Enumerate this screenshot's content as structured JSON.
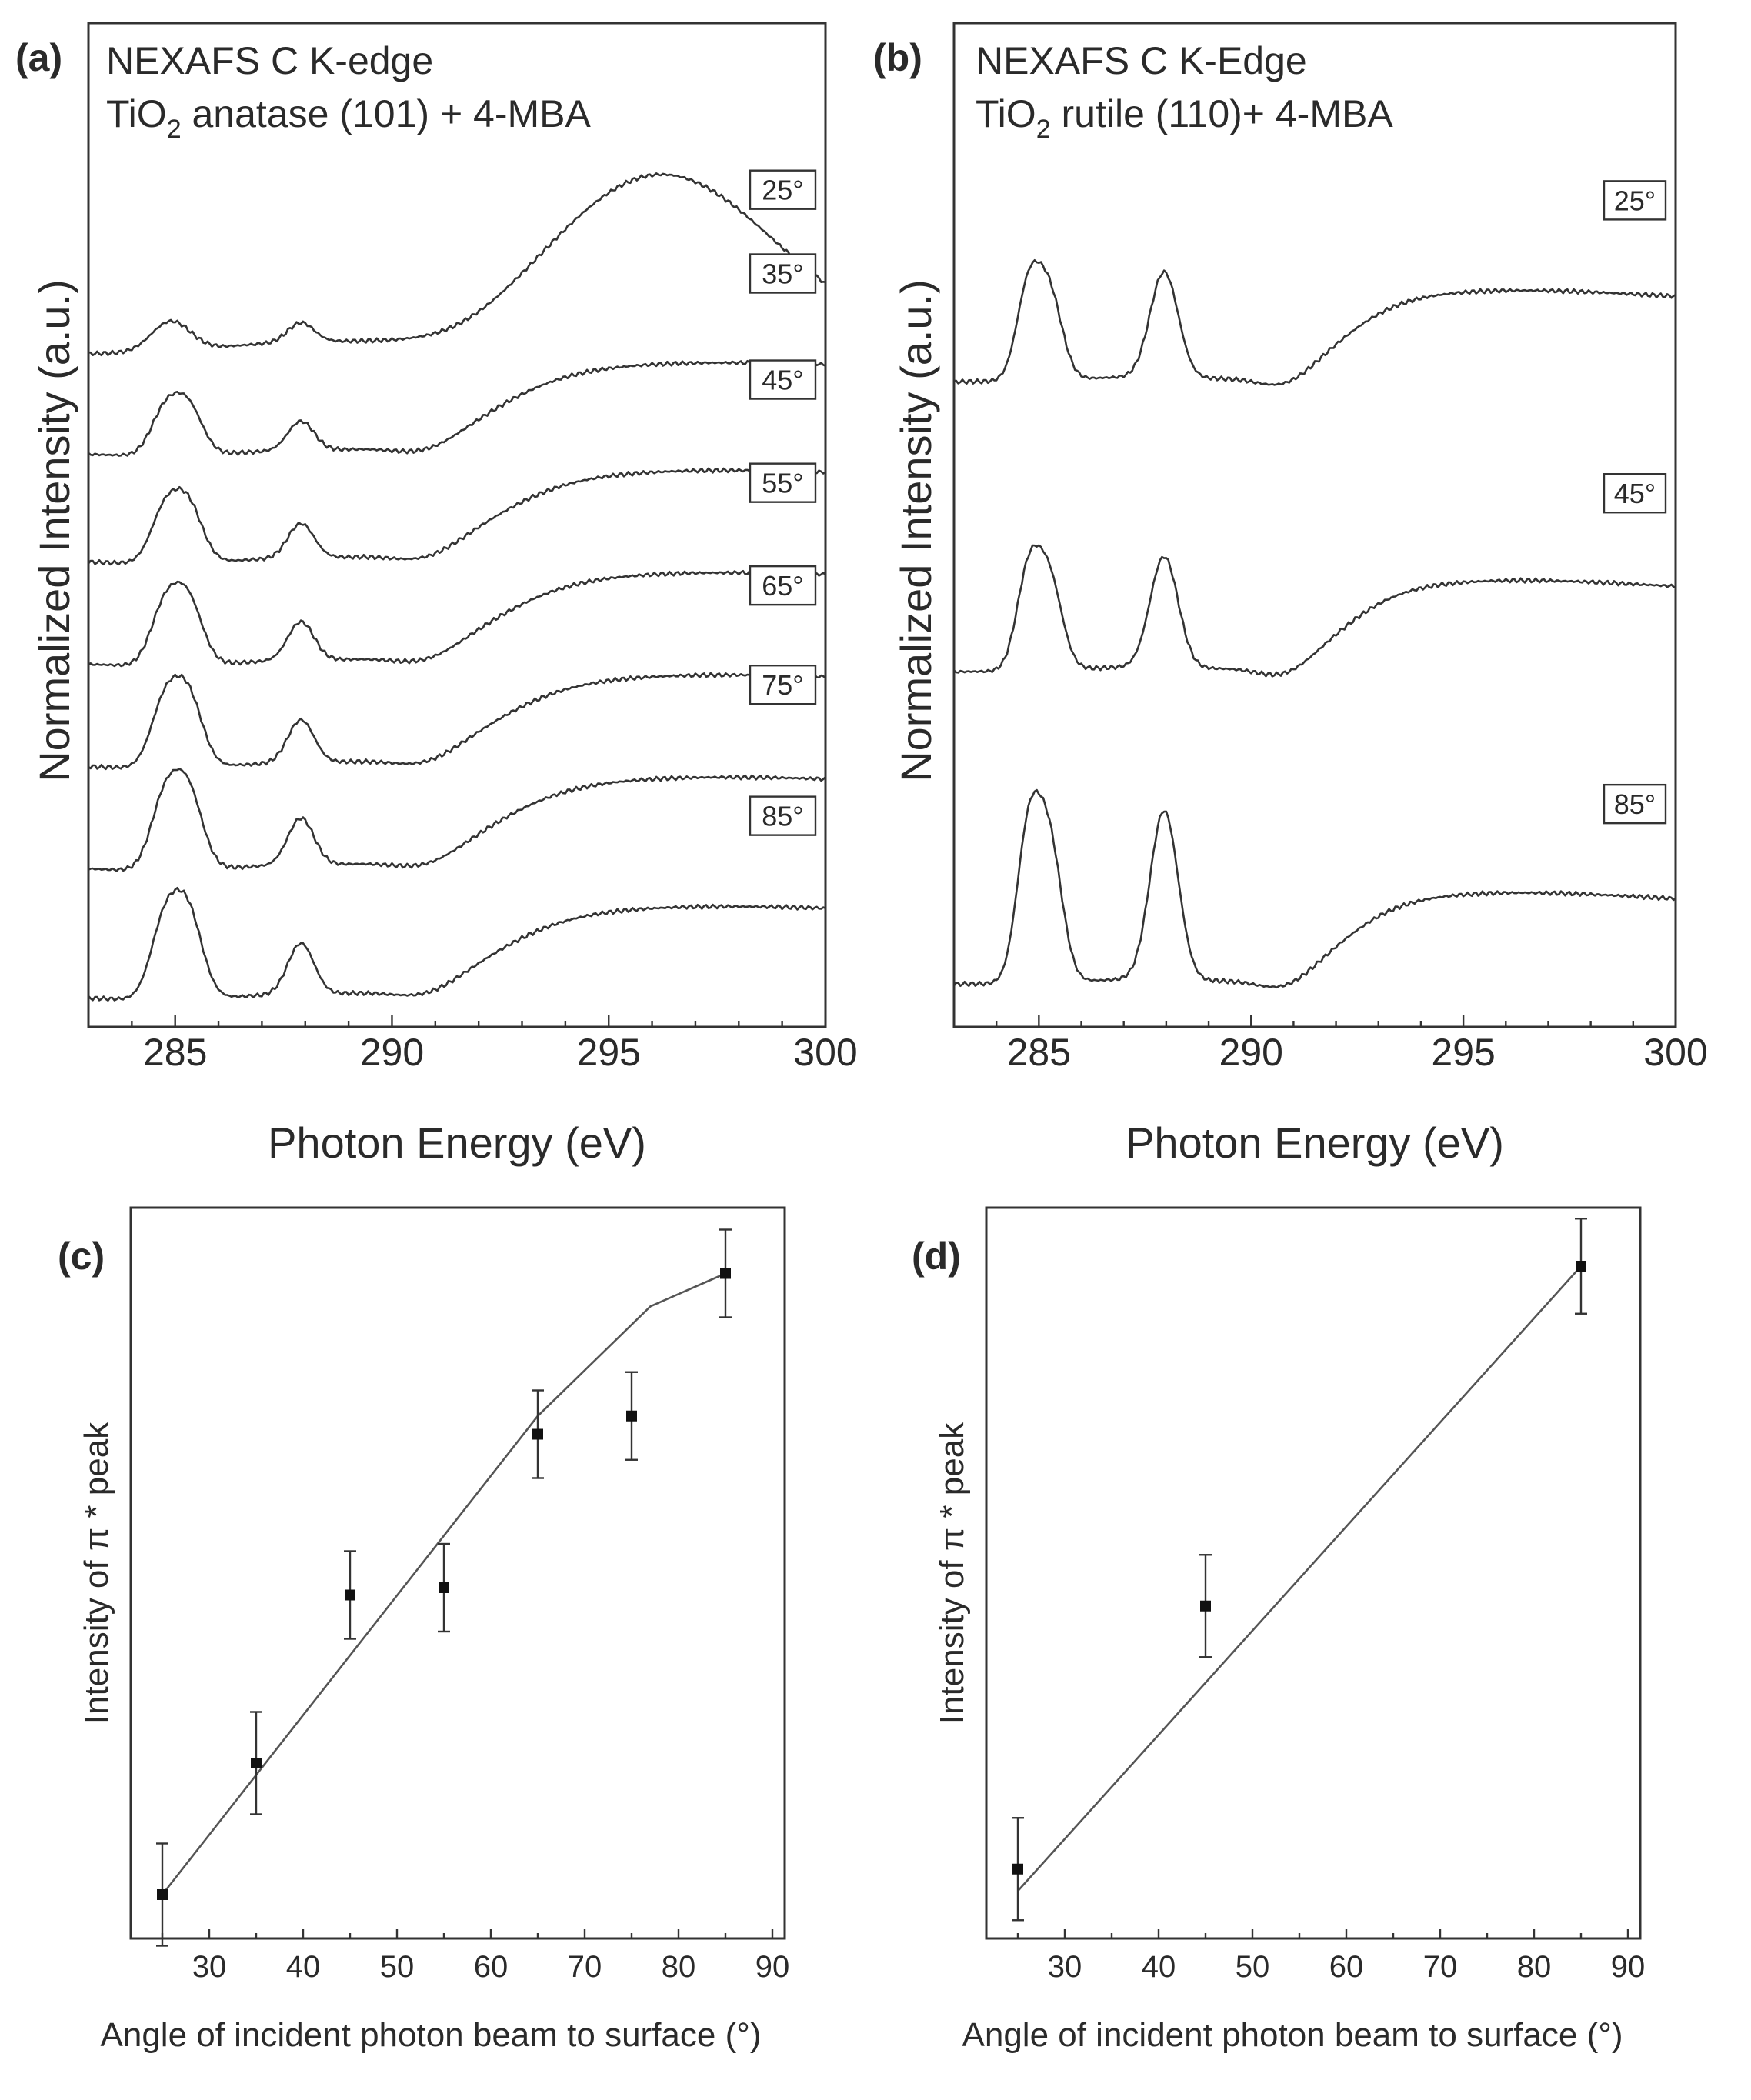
{
  "chart_data": [
    {
      "panel": "(a)",
      "type": "line",
      "title_line1": "NEXAFS C K-edge",
      "title_line2_pre": "TiO",
      "title_line2_sub": "2",
      "title_line2_post": " anatase (101) + 4-MBA",
      "xlabel": "Photon Energy (eV)",
      "ylabel": "Normalized Intensity (a.u.)",
      "xlim": [
        283,
        300
      ],
      "xticks": [
        285,
        290,
        295,
        300
      ],
      "series": [
        {
          "name": "25°",
          "label": "25°",
          "offset": 6.0,
          "scale": 0.58,
          "mode": "A_25"
        },
        {
          "name": "35°",
          "label": "35°",
          "offset": 5.05,
          "scale": 0.72,
          "mode": "A"
        },
        {
          "name": "45°",
          "label": "45°",
          "offset": 4.05,
          "scale": 0.85,
          "mode": "A"
        },
        {
          "name": "55°",
          "label": "55°",
          "offset": 3.1,
          "scale": 0.95,
          "mode": "A"
        },
        {
          "name": "65°",
          "label": "65°",
          "offset": 2.15,
          "scale": 1.05,
          "mode": "A"
        },
        {
          "name": "75°",
          "label": "75°",
          "offset": 1.2,
          "scale": 1.15,
          "mode": "A"
        },
        {
          "name": "85°",
          "label": "85°",
          "offset": 0.0,
          "scale": 1.25,
          "mode": "A"
        }
      ]
    },
    {
      "panel": "(b)",
      "type": "line",
      "title_line1": "NEXAFS C K-Edge",
      "title_line2_pre": "TiO",
      "title_line2_sub": "2",
      "title_line2_post": " rutile (110)+ 4-MBA",
      "xlabel": "Photon Energy (eV)",
      "ylabel": "Normalized Intensity (a.u.)",
      "xlim": [
        283,
        300
      ],
      "xticks": [
        285,
        290,
        295,
        300
      ],
      "series": [
        {
          "name": "25°",
          "label": "25°",
          "offset": 5.4,
          "scale": 1.0,
          "mode": "B"
        },
        {
          "name": "45°",
          "label": "45°",
          "offset": 2.8,
          "scale": 1.05,
          "mode": "B"
        },
        {
          "name": "85°",
          "label": "85°",
          "offset": 0.0,
          "scale": 1.6,
          "mode": "B"
        }
      ]
    },
    {
      "panel": "(c)",
      "type": "scatter",
      "xlabel": "Angle of incident photon beam to surface (°)",
      "ylabel": "Intensity of π * peak",
      "xlim": [
        20,
        90
      ],
      "ylim": [
        0,
        10
      ],
      "xticks": [
        30,
        40,
        50,
        60,
        70,
        80,
        90
      ],
      "points": {
        "x": [
          25,
          35,
          45,
          55,
          65,
          75,
          85
        ],
        "y": [
          0.6,
          2.4,
          4.7,
          4.8,
          6.9,
          7.15,
          9.1
        ],
        "err": [
          0.7,
          0.7,
          0.6,
          0.6,
          0.6,
          0.6,
          0.6
        ]
      },
      "fit": {
        "x": [
          25,
          65,
          77,
          85
        ],
        "y": [
          0.6,
          7.15,
          8.65,
          9.1
        ]
      }
    },
    {
      "panel": "(d)",
      "type": "scatter",
      "xlabel": "Angle of incident photon beam to surface (°)",
      "ylabel": "Intensity of π * peak",
      "xlim": [
        20,
        90
      ],
      "ylim": [
        0,
        10
      ],
      "xticks": [
        30,
        40,
        50,
        60,
        70,
        80,
        90
      ],
      "points": {
        "x": [
          25,
          45,
          85
        ],
        "y": [
          0.95,
          4.55,
          9.2
        ],
        "err": [
          0.7,
          0.7,
          0.65
        ]
      },
      "fit": {
        "x": [
          25,
          85
        ],
        "y": [
          0.65,
          9.2
        ]
      }
    }
  ]
}
